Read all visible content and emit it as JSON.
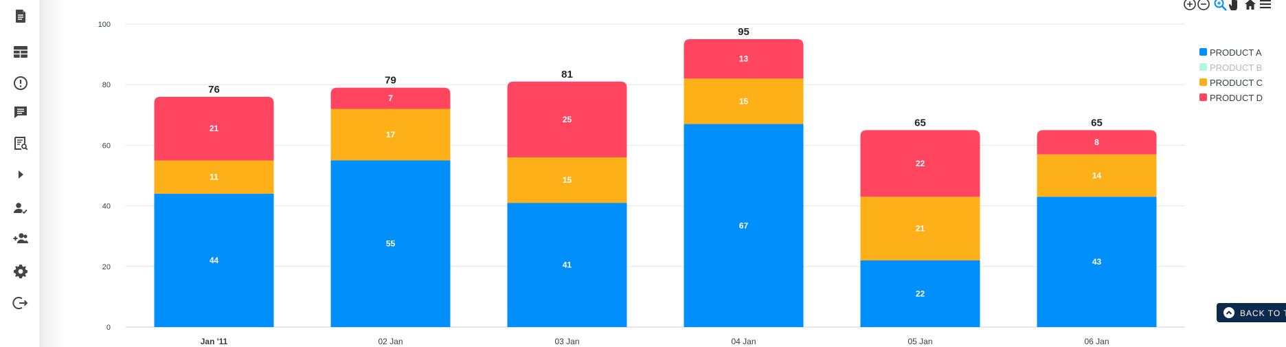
{
  "sidebar": {
    "items": [
      {
        "icon": "document-icon",
        "name": "sidebar-item-documents"
      },
      {
        "icon": "table-icon",
        "name": "sidebar-item-table"
      },
      {
        "icon": "alert-icon",
        "name": "sidebar-item-alerts"
      },
      {
        "icon": "message-icon",
        "name": "sidebar-item-messages"
      },
      {
        "icon": "report-search-icon",
        "name": "sidebar-item-report-search"
      },
      {
        "icon": "play-arrow-icon",
        "name": "sidebar-item-expand"
      },
      {
        "icon": "user-check-icon",
        "name": "sidebar-item-user-check"
      },
      {
        "icon": "group-add-icon",
        "name": "sidebar-item-group-add"
      },
      {
        "icon": "settings-icon",
        "name": "sidebar-item-settings"
      },
      {
        "icon": "logout-icon",
        "name": "sidebar-item-logout"
      }
    ]
  },
  "toolbar": {
    "tools": [
      "zoom-in-icon",
      "zoom-out-icon",
      "selection-zoom-icon",
      "pan-icon",
      "reset-home-icon",
      "menu-icon"
    ]
  },
  "back_to_top": {
    "label": "BACK TO T"
  },
  "colors": {
    "product_a": "#008ffb",
    "product_b": "#00e396",
    "product_c": "#feb019",
    "product_d": "#ff4560",
    "grid": "#e6e6e6",
    "active_tool": "#008ffb"
  },
  "chart_data": {
    "type": "bar",
    "stacked": true,
    "categories": [
      "Jan '11",
      "02 Jan",
      "03 Jan",
      "04 Jan",
      "05 Jan",
      "06 Jan"
    ],
    "series": [
      {
        "name": "PRODUCT A",
        "values": [
          44,
          55,
          41,
          67,
          22,
          43
        ],
        "color": "#008ffb",
        "visible": true
      },
      {
        "name": "PRODUCT B",
        "values": [
          0,
          0,
          0,
          0,
          0,
          0
        ],
        "color": "#00e396",
        "visible": false
      },
      {
        "name": "PRODUCT C",
        "values": [
          11,
          17,
          15,
          15,
          21,
          14
        ],
        "color": "#feb019",
        "visible": true
      },
      {
        "name": "PRODUCT D",
        "values": [
          21,
          7,
          25,
          13,
          22,
          8
        ],
        "color": "#ff4560",
        "visible": true
      }
    ],
    "totals": [
      76,
      79,
      81,
      95,
      65,
      65
    ],
    "yticks": [
      0,
      20,
      40,
      60,
      80,
      100
    ],
    "ylim": [
      0,
      100
    ],
    "grid": true,
    "legend_position": "right"
  }
}
